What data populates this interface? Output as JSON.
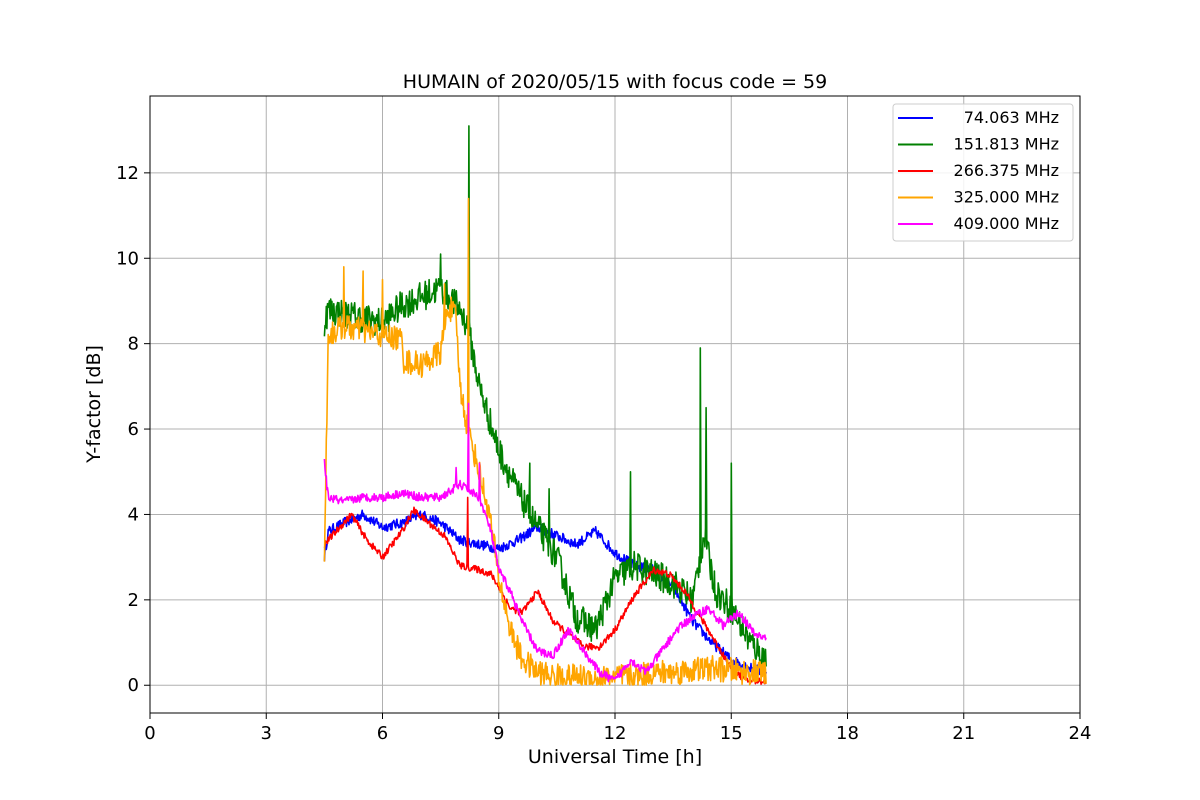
{
  "chart_data": {
    "type": "line",
    "title": "HUMAIN of 2020/05/15 with focus code = 59",
    "xlabel": "Universal Time [h]",
    "ylabel": "Y-factor [dB]",
    "xlim": [
      0,
      24
    ],
    "ylim": [
      -0.65,
      13.8
    ],
    "xticks": [
      0,
      3,
      6,
      9,
      12,
      15,
      18,
      21,
      24
    ],
    "yticks": [
      0,
      2,
      4,
      6,
      8,
      10,
      12
    ],
    "grid": true,
    "legend_position": "top-right",
    "series": [
      {
        "name": "74.063 MHz",
        "color": "#0000ff",
        "noise": 0.12,
        "x": [
          4.5,
          4.6,
          5.0,
          5.5,
          6.0,
          6.5,
          7.0,
          7.5,
          8.0,
          8.5,
          9.0,
          9.5,
          10.0,
          10.5,
          11.0,
          11.5,
          12.0,
          12.5,
          13.0,
          13.5,
          14.0,
          14.5,
          15.0,
          15.5,
          15.9
        ],
        "values": [
          3.0,
          3.6,
          3.8,
          4.0,
          3.7,
          3.8,
          4.0,
          3.8,
          3.4,
          3.3,
          3.2,
          3.4,
          3.7,
          3.5,
          3.3,
          3.6,
          3.1,
          2.8,
          2.7,
          2.3,
          1.5,
          1.0,
          0.6,
          0.4,
          0.3
        ]
      },
      {
        "name": "151.813 MHz",
        "color": "#008000",
        "noise": 0.35,
        "x": [
          4.5,
          4.6,
          5.0,
          5.5,
          6.0,
          6.5,
          7.0,
          7.5,
          8.0,
          8.2,
          8.5,
          9.0,
          9.5,
          10.0,
          10.5,
          11.0,
          11.5,
          12.0,
          12.5,
          13.0,
          13.5,
          14.0,
          14.3,
          14.6,
          15.0,
          15.5,
          15.9
        ],
        "values": [
          8.5,
          8.8,
          8.7,
          8.6,
          8.5,
          8.9,
          9.1,
          9.3,
          8.8,
          8.4,
          7.0,
          5.5,
          4.5,
          3.7,
          3.0,
          1.6,
          1.3,
          2.5,
          2.8,
          2.6,
          2.4,
          2.0,
          3.5,
          2.2,
          1.8,
          1.0,
          0.6
        ],
        "spikes": [
          [
            8.23,
            13.1
          ],
          [
            14.2,
            7.9
          ],
          [
            14.35,
            6.5
          ],
          [
            15.0,
            5.2
          ],
          [
            12.4,
            5.0
          ],
          [
            10.3,
            4.6
          ],
          [
            9.8,
            5.2
          ],
          [
            7.5,
            10.1
          ]
        ]
      },
      {
        "name": "266.375 MHz",
        "color": "#ff0000",
        "noise": 0.08,
        "x": [
          4.5,
          4.8,
          5.2,
          5.6,
          6.0,
          6.5,
          6.8,
          7.2,
          7.6,
          8.0,
          8.5,
          8.8,
          9.0,
          9.3,
          9.6,
          10.0,
          10.4,
          10.8,
          11.2,
          11.6,
          12.0,
          12.5,
          13.0,
          13.4,
          13.8,
          14.2,
          14.6,
          15.0,
          15.4,
          15.9
        ],
        "values": [
          3.3,
          3.6,
          4.0,
          3.4,
          3.0,
          3.6,
          4.1,
          3.8,
          3.5,
          2.8,
          2.7,
          2.6,
          2.3,
          1.8,
          1.7,
          2.2,
          1.5,
          1.2,
          0.9,
          0.9,
          1.3,
          2.1,
          2.7,
          2.6,
          2.2,
          1.6,
          1.0,
          0.4,
          0.1,
          0.1
        ],
        "spikes": [
          [
            8.2,
            4.4
          ]
        ]
      },
      {
        "name": "325.000 MHz",
        "color": "#ffa500",
        "noise": 0.3,
        "x": [
          4.5,
          4.6,
          5.0,
          5.5,
          6.0,
          6.5,
          6.55,
          7.0,
          7.5,
          7.7,
          7.9,
          8.0,
          8.2,
          8.5,
          8.8,
          9.0,
          9.3,
          9.6,
          10.0,
          10.5,
          11.0,
          11.5,
          12.0,
          12.5,
          13.0,
          13.5,
          14.0,
          14.5,
          15.0,
          15.5,
          15.9
        ],
        "values": [
          3.0,
          8.2,
          8.4,
          8.3,
          8.2,
          8.1,
          7.6,
          7.5,
          7.8,
          8.9,
          8.6,
          7.0,
          6.0,
          5.0,
          3.8,
          2.5,
          1.3,
          0.6,
          0.3,
          0.2,
          0.2,
          0.15,
          0.2,
          0.2,
          0.3,
          0.3,
          0.35,
          0.4,
          0.35,
          0.3,
          0.3
        ],
        "spikes": [
          [
            8.22,
            11.4
          ],
          [
            5.0,
            9.8
          ],
          [
            5.5,
            9.7
          ],
          [
            6.0,
            9.5
          ],
          [
            7.6,
            9.4
          ]
        ]
      },
      {
        "name": "409.000 MHz",
        "color": "#ff00ff",
        "noise": 0.1,
        "x": [
          4.5,
          4.6,
          5.0,
          5.5,
          6.0,
          6.5,
          7.0,
          7.5,
          8.0,
          8.5,
          8.8,
          9.0,
          9.3,
          9.6,
          10.0,
          10.4,
          10.8,
          11.2,
          11.6,
          12.0,
          12.4,
          12.8,
          13.2,
          13.6,
          14.0,
          14.4,
          14.8,
          15.2,
          15.6,
          15.9
        ],
        "values": [
          5.2,
          4.4,
          4.3,
          4.4,
          4.4,
          4.5,
          4.4,
          4.4,
          4.7,
          4.4,
          3.6,
          2.7,
          2.2,
          1.5,
          0.8,
          0.7,
          1.3,
          0.8,
          0.3,
          0.1,
          0.6,
          0.3,
          0.8,
          1.3,
          1.6,
          1.8,
          1.4,
          1.7,
          1.2,
          1.1
        ],
        "spikes": [
          [
            8.22,
            6.6
          ],
          [
            8.5,
            5.2
          ],
          [
            7.9,
            5.1
          ]
        ]
      }
    ]
  }
}
